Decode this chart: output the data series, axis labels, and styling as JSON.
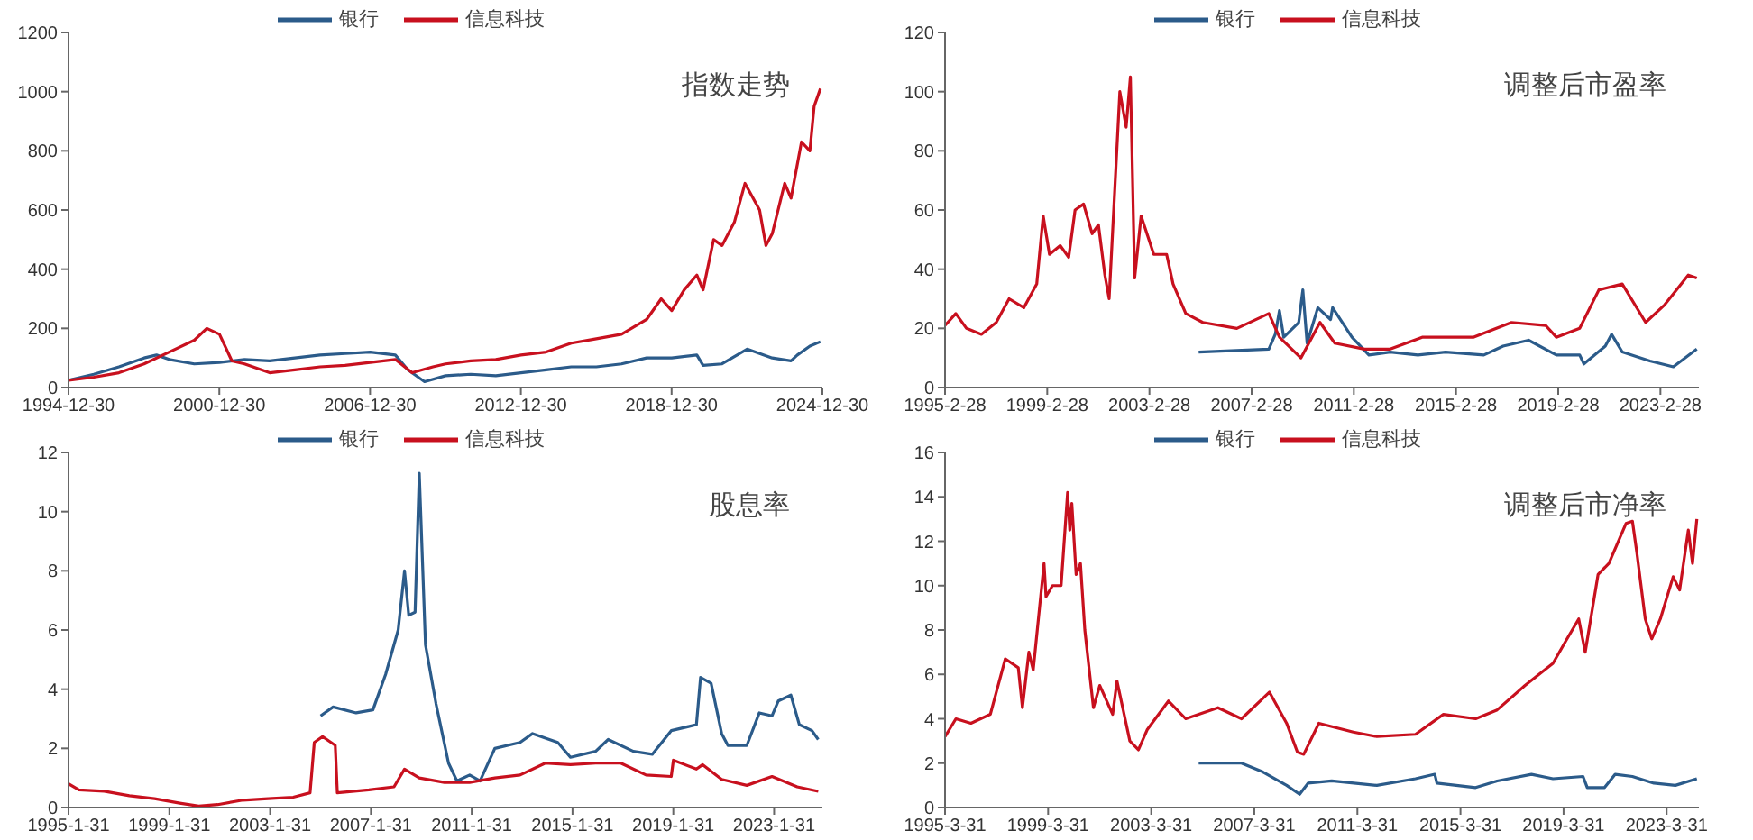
{
  "chart_data": [
    {
      "type": "line",
      "title": "指数走势",
      "legend": "top",
      "xlim": [
        "1994-12-30",
        "2024-12-30"
      ],
      "xticks": [
        "1994-12-30",
        "2000-12-30",
        "2006-12-30",
        "2012-12-30",
        "2018-12-30",
        "2024-12-30"
      ],
      "ylim": [
        0,
        1200
      ],
      "yticks": [
        0,
        200,
        400,
        600,
        800,
        1000,
        1200
      ],
      "series": [
        {
          "name": "银行",
          "color": "#2b5b8a",
          "x": [
            "1995-01",
            "1996-01",
            "1997-01",
            "1998-01",
            "1998-07",
            "1999-01",
            "2000-01",
            "2001-01",
            "2002-01",
            "2003-01",
            "2004-01",
            "2005-01",
            "2006-01",
            "2007-01",
            "2008-01",
            "2008-07",
            "2009-03",
            "2010-01",
            "2011-01",
            "2012-01",
            "2013-01",
            "2014-01",
            "2015-01",
            "2016-01",
            "2017-01",
            "2018-01",
            "2019-01",
            "2020-01",
            "2020-04",
            "2021-01",
            "2022-01",
            "2023-01",
            "2023-10",
            "2024-01",
            "2024-07",
            "2024-12"
          ],
          "values": [
            25,
            45,
            70,
            100,
            110,
            95,
            80,
            85,
            95,
            90,
            100,
            110,
            115,
            120,
            110,
            60,
            20,
            40,
            45,
            40,
            50,
            60,
            70,
            70,
            80,
            100,
            100,
            110,
            75,
            80,
            130,
            100,
            90,
            110,
            140,
            155
          ]
        },
        {
          "name": "信息科技",
          "color": "#c8101e",
          "x": [
            "1995-01",
            "1996-01",
            "1997-01",
            "1998-01",
            "1999-01",
            "2000-01",
            "2000-07",
            "2001-01",
            "2001-07",
            "2002-01",
            "2003-01",
            "2004-01",
            "2005-01",
            "2006-01",
            "2007-01",
            "2008-01",
            "2008-09",
            "2009-07",
            "2010-01",
            "2011-01",
            "2012-01",
            "2013-01",
            "2014-01",
            "2015-01",
            "2016-01",
            "2017-01",
            "2018-01",
            "2018-08",
            "2019-01",
            "2019-07",
            "2020-01",
            "2020-04",
            "2020-09",
            "2021-01",
            "2021-07",
            "2021-12",
            "2022-07",
            "2022-10",
            "2023-01",
            "2023-07",
            "2023-10",
            "2024-03",
            "2024-07",
            "2024-09",
            "2024-12"
          ],
          "values": [
            25,
            35,
            50,
            80,
            120,
            160,
            200,
            180,
            90,
            80,
            50,
            60,
            70,
            75,
            85,
            95,
            50,
            70,
            80,
            90,
            95,
            110,
            120,
            150,
            165,
            180,
            230,
            300,
            260,
            330,
            380,
            330,
            500,
            480,
            560,
            690,
            600,
            480,
            520,
            690,
            640,
            830,
            800,
            950,
            1010
          ]
        }
      ]
    },
    {
      "type": "line",
      "title": "调整后市盈率",
      "legend": "top",
      "xlim": [
        "1995-02-28",
        "2024-08-31"
      ],
      "xticks": [
        {
          "value": "1995-02-28",
          "label": "1995-2-28"
        },
        {
          "value": "1999-02-28",
          "label": "1999-2-28"
        },
        {
          "value": "2003-02-28",
          "label": "2003-2-28"
        },
        {
          "value": "2007-02-28",
          "label": "2007-2-28"
        },
        {
          "value": "2011-02-28",
          "label": "2011-2-28"
        },
        {
          "value": "2015-02-28",
          "label": "2015-2-28"
        },
        {
          "value": "2019-02-28",
          "label": "2019-2-28"
        },
        {
          "value": "2023-02-28",
          "label": "2023-2-28"
        }
      ],
      "ylim": [
        0,
        120
      ],
      "yticks": [
        0,
        20,
        40,
        60,
        80,
        100,
        120
      ],
      "series": [
        {
          "name": "银行",
          "color": "#2b5b8a",
          "x": [
            "2005-02",
            "2007-11",
            "2008-02",
            "2008-04",
            "2008-06",
            "2009-01",
            "2009-03",
            "2009-05",
            "2009-10",
            "2010-04",
            "2010-05",
            "2011-02",
            "2011-10",
            "2012-08",
            "2013-09",
            "2014-10",
            "2016-04",
            "2017-01",
            "2018-01",
            "2019-02",
            "2020-01",
            "2020-03",
            "2021-01",
            "2021-04",
            "2021-09",
            "2022-10",
            "2023-09",
            "2024-08"
          ],
          "values": [
            12,
            13,
            18,
            26,
            17,
            22,
            33,
            15,
            27,
            23,
            27,
            17,
            11,
            12,
            11,
            12,
            11,
            14,
            16,
            11,
            11,
            8,
            14,
            18,
            12,
            9,
            7,
            13
          ]
        },
        {
          "name": "信息科技",
          "color": "#c8101e",
          "x": [
            "1995-03",
            "1995-08",
            "1996-01",
            "1996-08",
            "1997-03",
            "1997-09",
            "1998-04",
            "1998-10",
            "1999-01",
            "1999-04",
            "1999-09",
            "2000-01",
            "2000-04",
            "2000-08",
            "2000-12",
            "2001-03",
            "2001-06",
            "2001-08",
            "2002-01",
            "2002-04",
            "2002-06",
            "2002-08",
            "2002-11",
            "2003-05",
            "2003-11",
            "2004-02",
            "2004-08",
            "2005-04",
            "2006-08",
            "2007-11",
            "2008-04",
            "2009-02",
            "2009-11",
            "2010-06",
            "2011-08",
            "2012-08",
            "2013-11",
            "2015-11",
            "2017-05",
            "2018-09",
            "2019-02",
            "2020-01",
            "2020-10",
            "2021-09",
            "2022-08",
            "2023-05",
            "2024-04",
            "2024-08"
          ],
          "values": [
            21,
            25,
            20,
            18,
            22,
            30,
            27,
            35,
            58,
            45,
            48,
            44,
            60,
            62,
            52,
            55,
            38,
            30,
            100,
            88,
            105,
            37,
            58,
            45,
            45,
            35,
            25,
            22,
            20,
            25,
            17,
            10,
            22,
            15,
            13,
            13,
            17,
            17,
            22,
            21,
            17,
            20,
            33,
            35,
            22,
            28,
            38,
            37
          ]
        }
      ]
    },
    {
      "type": "line",
      "title": "股息率",
      "legend": "top",
      "xlim": [
        "1995-01-31",
        "2024-12-31"
      ],
      "xticks": [
        {
          "value": "1995-01-31",
          "label": "1995-1-31"
        },
        {
          "value": "1999-01-31",
          "label": "1999-1-31"
        },
        {
          "value": "2003-01-31",
          "label": "2003-1-31"
        },
        {
          "value": "2007-01-31",
          "label": "2007-1-31"
        },
        {
          "value": "2011-01-31",
          "label": "2011-1-31"
        },
        {
          "value": "2015-01-31",
          "label": "2015-1-31"
        },
        {
          "value": "2019-01-31",
          "label": "2019-1-31"
        },
        {
          "value": "2023-01-31",
          "label": "2023-1-31"
        }
      ],
      "ylim": [
        0,
        12
      ],
      "yticks": [
        0,
        2,
        4,
        6,
        8,
        10,
        12
      ],
      "series": [
        {
          "name": "银行",
          "color": "#2b5b8a",
          "x": [
            "2005-02",
            "2005-08",
            "2006-07",
            "2007-03",
            "2007-09",
            "2008-03",
            "2008-06",
            "2008-08",
            "2008-11",
            "2009-01",
            "2009-04",
            "2009-09",
            "2010-03",
            "2010-07",
            "2011-01",
            "2011-06",
            "2012-01",
            "2013-01",
            "2013-07",
            "2014-07",
            "2015-01",
            "2016-01",
            "2016-07",
            "2017-07",
            "2018-04",
            "2019-01",
            "2020-01",
            "2020-03",
            "2020-08",
            "2021-01",
            "2021-04",
            "2022-01",
            "2022-07",
            "2023-01",
            "2023-04",
            "2023-10",
            "2024-02",
            "2024-08",
            "2024-11"
          ],
          "values": [
            3.1,
            3.4,
            3.2,
            3.3,
            4.5,
            6.0,
            8.0,
            6.5,
            6.6,
            11.3,
            5.5,
            3.5,
            1.5,
            0.9,
            1.1,
            0.9,
            2.0,
            2.2,
            2.5,
            2.2,
            1.7,
            1.9,
            2.3,
            1.9,
            1.8,
            2.6,
            2.8,
            4.4,
            4.2,
            2.5,
            2.1,
            2.1,
            3.2,
            3.1,
            3.6,
            3.8,
            2.8,
            2.6,
            2.3
          ]
        },
        {
          "name": "信息科技",
          "color": "#c8101e",
          "x": [
            "1995-02",
            "1995-07",
            "1996-07",
            "1997-07",
            "1998-07",
            "1999-07",
            "2000-04",
            "2001-01",
            "2002-01",
            "2003-01",
            "2004-01",
            "2004-09",
            "2004-11",
            "2005-03",
            "2005-09",
            "2005-10",
            "2007-01",
            "2008-01",
            "2008-06",
            "2009-01",
            "2010-01",
            "2011-01",
            "2012-01",
            "2013-01",
            "2014-01",
            "2015-01",
            "2016-01",
            "2017-01",
            "2018-01",
            "2019-01",
            "2019-02",
            "2020-01",
            "2020-04",
            "2021-01",
            "2022-01",
            "2023-01",
            "2024-01",
            "2024-11"
          ],
          "values": [
            0.8,
            0.6,
            0.55,
            0.4,
            0.3,
            0.15,
            0.05,
            0.1,
            0.25,
            0.3,
            0.35,
            0.5,
            2.2,
            2.4,
            2.1,
            0.5,
            0.6,
            0.7,
            1.3,
            1.0,
            0.85,
            0.85,
            1.0,
            1.1,
            1.5,
            1.45,
            1.5,
            1.5,
            1.1,
            1.05,
            1.6,
            1.3,
            1.45,
            0.95,
            0.75,
            1.05,
            0.7,
            0.55
          ]
        }
      ]
    },
    {
      "type": "line",
      "title": "调整后市净率",
      "legend": "top",
      "xlim": [
        "1995-03-31",
        "2024-06-30"
      ],
      "xticks": [
        {
          "value": "1995-03-31",
          "label": "1995-3-31"
        },
        {
          "value": "1999-03-31",
          "label": "1999-3-31"
        },
        {
          "value": "2003-03-31",
          "label": "2003-3-31"
        },
        {
          "value": "2007-03-31",
          "label": "2007-3-31"
        },
        {
          "value": "2011-03-31",
          "label": "2011-3-31"
        },
        {
          "value": "2015-03-31",
          "label": "2015-3-31"
        },
        {
          "value": "2019-03-31",
          "label": "2019-3-31"
        },
        {
          "value": "2023-03-31",
          "label": "2023-3-31"
        }
      ],
      "ylim": [
        0,
        16
      ],
      "yticks": [
        0,
        2,
        4,
        6,
        8,
        10,
        12,
        14,
        16
      ],
      "series": [
        {
          "name": "银行",
          "color": "#2b5b8a",
          "x": [
            "2005-02",
            "2006-10",
            "2007-08",
            "2008-07",
            "2009-01",
            "2009-05",
            "2010-04",
            "2012-01",
            "2013-07",
            "2014-04",
            "2014-05",
            "2015-11",
            "2016-09",
            "2018-01",
            "2018-11",
            "2020-01",
            "2020-03",
            "2020-11",
            "2021-04",
            "2021-12",
            "2022-10",
            "2023-08",
            "2024-06"
          ],
          "values": [
            2.0,
            2.0,
            1.6,
            1.0,
            0.6,
            1.1,
            1.2,
            1.0,
            1.3,
            1.5,
            1.1,
            0.9,
            1.2,
            1.5,
            1.3,
            1.4,
            0.9,
            0.9,
            1.5,
            1.4,
            1.1,
            1.0,
            1.3
          ]
        },
        {
          "name": "信息科技",
          "color": "#c8101e",
          "x": [
            "1995-04",
            "1995-09",
            "1996-04",
            "1997-01",
            "1997-08",
            "1998-02",
            "1998-04",
            "1998-07",
            "1998-09",
            "1999-02",
            "1999-03",
            "1999-06",
            "1999-10",
            "2000-01",
            "2000-02",
            "2000-03",
            "2000-05",
            "2000-07",
            "2000-09",
            "2001-01",
            "2001-04",
            "2001-10",
            "2001-12",
            "2002-06",
            "2002-10",
            "2003-02",
            "2003-12",
            "2004-08",
            "2005-11",
            "2006-10",
            "2007-11",
            "2008-07",
            "2008-12",
            "2009-03",
            "2009-10",
            "2011-02",
            "2012-01",
            "2013-07",
            "2014-08",
            "2015-11",
            "2016-09",
            "2017-10",
            "2018-11",
            "2019-05",
            "2019-11",
            "2020-02",
            "2020-08",
            "2021-01",
            "2021-09",
            "2021-12",
            "2022-02",
            "2022-06",
            "2022-09",
            "2023-01",
            "2023-07",
            "2023-10",
            "2024-02",
            "2024-04",
            "2024-06"
          ],
          "values": [
            3.2,
            4.0,
            3.8,
            4.2,
            6.7,
            6.3,
            4.5,
            7.0,
            6.2,
            11,
            9.5,
            10,
            10,
            14.2,
            12.5,
            13.7,
            10.5,
            11,
            8,
            4.5,
            5.5,
            4.2,
            5.7,
            3,
            2.6,
            3.5,
            4.8,
            4.0,
            4.5,
            4.0,
            5.2,
            3.8,
            2.5,
            2.4,
            3.8,
            3.4,
            3.2,
            3.3,
            4.2,
            4.0,
            4.4,
            5.5,
            6.5,
            7.5,
            8.5,
            7,
            10.5,
            11,
            12.8,
            12.9,
            11.5,
            8.5,
            7.6,
            8.5,
            10.4,
            9.8,
            12.5,
            11,
            13
          ]
        }
      ]
    }
  ]
}
